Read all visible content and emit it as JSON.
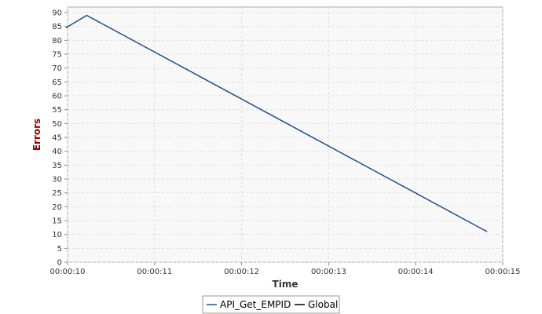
{
  "chart_data": {
    "type": "line",
    "title": "",
    "xlabel": "Time",
    "ylabel": "Errors",
    "xlim": [
      "00:00:10",
      "00:00:15"
    ],
    "ylim": [
      0,
      92
    ],
    "x_ticks": [
      "00:00:10",
      "00:00:11",
      "00:00:12",
      "00:00:13",
      "00:00:14",
      "00:00:15"
    ],
    "y_ticks": [
      0,
      5,
      10,
      15,
      20,
      25,
      30,
      35,
      40,
      45,
      50,
      55,
      60,
      65,
      70,
      75,
      80,
      85,
      90
    ],
    "grid": true,
    "legend": {
      "position": "bottom-center"
    },
    "series": [
      {
        "name": "API_Get_EMPID",
        "color": "#1f4e8c",
        "x": [
          "00:00:09.98",
          "00:00:10.22",
          "00:00:14.82"
        ],
        "y": [
          84.5,
          89,
          11
        ]
      },
      {
        "name": "Global",
        "color": "#000000",
        "x": [],
        "y": []
      }
    ],
    "colors": {
      "plot_background": "#f8f8f8",
      "plot_border": "#aaaaaa",
      "grid": "#dddddd",
      "ylabel": "#990000",
      "xlabel": "#333333"
    }
  }
}
